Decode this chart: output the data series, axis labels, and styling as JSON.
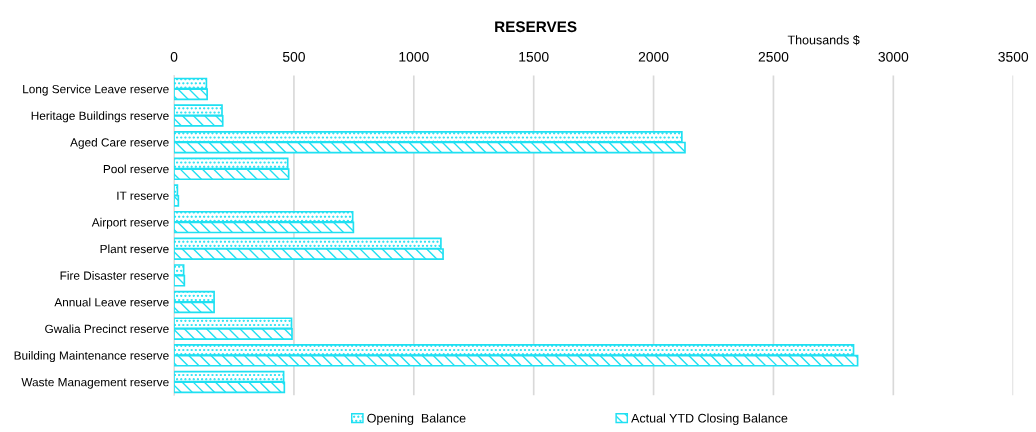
{
  "chart_data": {
    "type": "bar",
    "orientation": "horizontal",
    "title": "RESERVES",
    "xlabel": "Thousands $",
    "categories": [
      "Long Service Leave reserve",
      "Heritage Buildings reserve",
      "Aged Care reserve",
      "Pool reserve",
      "IT reserve",
      "Airport reserve",
      "Plant reserve",
      "Fire Disaster reserve",
      "Annual Leave reserve",
      "Gwalia Precinct reserve",
      "Building Maintenance reserve",
      "Waste Management reserve"
    ],
    "series": [
      {
        "name": "Opening  Balance",
        "color": "#1fe0f2",
        "values": [
          135,
          200,
          2118,
          474,
          14,
          745,
          1113,
          40,
          167,
          490,
          2834,
          457
        ]
      },
      {
        "name": "Actual YTD Closing Balance",
        "color": "#1fe0f2",
        "values": [
          138,
          203,
          2131,
          478,
          18,
          748,
          1122,
          43,
          167,
          492,
          2851,
          460
        ]
      }
    ],
    "xlim": [
      0,
      3500
    ],
    "xticks": [
      0,
      500,
      1000,
      1500,
      2000,
      2500,
      3000,
      3500
    ],
    "grid": "x",
    "legend": "bottom"
  }
}
